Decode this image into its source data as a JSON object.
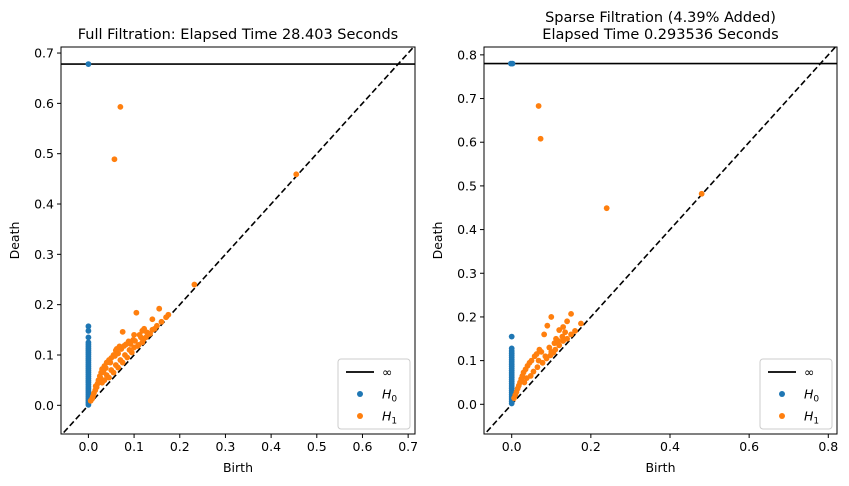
{
  "chart_data": [
    {
      "type": "scatter",
      "title_lines": [
        "Full Filtration: Elapsed Time 28.403 Seconds"
      ],
      "xlabel": "Birth",
      "ylabel": "Death",
      "xlim": [
        -0.06,
        0.715
      ],
      "ylim": [
        -0.057,
        0.712
      ],
      "xticks": [
        0.0,
        0.1,
        0.2,
        0.3,
        0.4,
        0.5,
        0.6,
        0.7
      ],
      "xtick_labels": [
        "0.0",
        "0.1",
        "0.2",
        "0.3",
        "0.4",
        "0.5",
        "0.6",
        "0.7"
      ],
      "yticks": [
        0.0,
        0.1,
        0.2,
        0.3,
        0.4,
        0.5,
        0.6,
        0.7
      ],
      "ytick_labels": [
        "0.0",
        "0.1",
        "0.2",
        "0.3",
        "0.4",
        "0.5",
        "0.6",
        "0.7"
      ],
      "infinity_line": 0.678,
      "diagonal": true,
      "legend": {
        "position": "lower-right",
        "entries": [
          {
            "label": "∞",
            "marker": "line",
            "color": "#000000"
          },
          {
            "label": "H",
            "sub": "0",
            "marker": "dot",
            "color": "#1f77b4"
          },
          {
            "label": "H",
            "sub": "1",
            "marker": "dot",
            "color": "#ff7f0e"
          }
        ]
      },
      "series": [
        {
          "name": "H0",
          "color": "#1f77b4",
          "points": [
            [
              0.0,
              0.678
            ],
            [
              0.0,
              0.157
            ],
            [
              0.0,
              0.148
            ],
            [
              0.0,
              0.135
            ],
            [
              0.0,
              0.125
            ],
            [
              0.0,
              0.121
            ],
            [
              0.0,
              0.117
            ],
            [
              0.0,
              0.113
            ],
            [
              0.0,
              0.109
            ],
            [
              0.0,
              0.105
            ],
            [
              0.0,
              0.101
            ],
            [
              0.0,
              0.097
            ],
            [
              0.0,
              0.093
            ],
            [
              0.0,
              0.089
            ],
            [
              0.0,
              0.085
            ],
            [
              0.0,
              0.081
            ],
            [
              0.0,
              0.077
            ],
            [
              0.0,
              0.073
            ],
            [
              0.0,
              0.069
            ],
            [
              0.0,
              0.065
            ],
            [
              0.0,
              0.061
            ],
            [
              0.0,
              0.057
            ],
            [
              0.0,
              0.053
            ],
            [
              0.0,
              0.049
            ],
            [
              0.0,
              0.045
            ],
            [
              0.0,
              0.041
            ],
            [
              0.0,
              0.037
            ],
            [
              0.0,
              0.033
            ],
            [
              0.0,
              0.029
            ],
            [
              0.0,
              0.025
            ],
            [
              0.0,
              0.021
            ],
            [
              0.0,
              0.017
            ],
            [
              0.0,
              0.013
            ],
            [
              0.0,
              0.009
            ],
            [
              0.0,
              0.005
            ],
            [
              0.0,
              0.001
            ]
          ]
        },
        {
          "name": "H1",
          "color": "#ff7f0e",
          "points": [
            [
              0.07,
              0.593
            ],
            [
              0.057,
              0.489
            ],
            [
              0.455,
              0.459
            ],
            [
              0.232,
              0.24
            ],
            [
              0.155,
              0.192
            ],
            [
              0.105,
              0.184
            ],
            [
              0.175,
              0.18
            ],
            [
              0.14,
              0.171
            ],
            [
              0.122,
              0.152
            ],
            [
              0.075,
              0.146
            ],
            [
              0.128,
              0.145
            ],
            [
              0.115,
              0.135
            ],
            [
              0.098,
              0.13
            ],
            [
              0.088,
              0.127
            ],
            [
              0.082,
              0.121
            ],
            [
              0.068,
              0.117
            ],
            [
              0.072,
              0.112
            ],
            [
              0.06,
              0.109
            ],
            [
              0.065,
              0.103
            ],
            [
              0.055,
              0.1
            ],
            [
              0.05,
              0.094
            ],
            [
              0.045,
              0.09
            ],
            [
              0.04,
              0.085
            ],
            [
              0.035,
              0.078
            ],
            [
              0.03,
              0.072
            ],
            [
              0.028,
              0.065
            ],
            [
              0.025,
              0.058
            ],
            [
              0.022,
              0.05
            ],
            [
              0.02,
              0.043
            ],
            [
              0.018,
              0.036
            ],
            [
              0.015,
              0.03
            ],
            [
              0.012,
              0.024
            ],
            [
              0.01,
              0.018
            ],
            [
              0.008,
              0.013
            ],
            [
              0.005,
              0.009
            ],
            [
              0.09,
              0.11
            ],
            [
              0.1,
              0.115
            ],
            [
              0.11,
              0.12
            ],
            [
              0.12,
              0.13
            ],
            [
              0.13,
              0.14
            ],
            [
              0.14,
              0.15
            ],
            [
              0.15,
              0.158
            ],
            [
              0.16,
              0.166
            ],
            [
              0.17,
              0.175
            ],
            [
              0.08,
              0.1
            ],
            [
              0.07,
              0.09
            ],
            [
              0.06,
              0.08
            ],
            [
              0.05,
              0.07
            ],
            [
              0.04,
              0.06
            ],
            [
              0.035,
              0.05
            ],
            [
              0.03,
              0.045
            ],
            [
              0.095,
              0.105
            ],
            [
              0.085,
              0.095
            ],
            [
              0.075,
              0.085
            ],
            [
              0.065,
              0.075
            ],
            [
              0.055,
              0.065
            ],
            [
              0.045,
              0.055
            ],
            [
              0.108,
              0.118
            ],
            [
              0.118,
              0.125
            ],
            [
              0.126,
              0.135
            ],
            [
              0.135,
              0.142
            ],
            [
              0.145,
              0.152
            ],
            [
              0.062,
              0.112
            ],
            [
              0.078,
              0.118
            ],
            [
              0.092,
              0.122
            ],
            [
              0.102,
              0.128
            ],
            [
              0.058,
              0.098
            ],
            [
              0.048,
              0.085
            ],
            [
              0.038,
              0.074
            ],
            [
              0.033,
              0.066
            ],
            [
              0.026,
              0.055
            ],
            [
              0.024,
              0.047
            ],
            [
              0.016,
              0.038
            ],
            [
              0.112,
              0.14
            ],
            [
              0.118,
              0.148
            ],
            [
              0.1,
              0.14
            ]
          ]
        }
      ]
    },
    {
      "type": "scatter",
      "title_lines": [
        "Sparse Filtration (4.39% Added)",
        "Elapsed Time 0.293536 Seconds"
      ],
      "xlabel": "Birth",
      "ylabel": "Death",
      "xlim": [
        -0.07,
        0.822
      ],
      "ylim": [
        -0.068,
        0.818
      ],
      "xticks": [
        0.0,
        0.2,
        0.4,
        0.6,
        0.8
      ],
      "xtick_labels": [
        "0.0",
        "0.2",
        "0.4",
        "0.6",
        "0.8"
      ],
      "yticks": [
        0.0,
        0.1,
        0.2,
        0.3,
        0.4,
        0.5,
        0.6,
        0.7,
        0.8
      ],
      "ytick_labels": [
        "0.0",
        "0.1",
        "0.2",
        "0.3",
        "0.4",
        "0.5",
        "0.6",
        "0.7",
        "0.8"
      ],
      "infinity_line": 0.78,
      "diagonal": true,
      "legend": {
        "position": "lower-right",
        "entries": [
          {
            "label": "∞",
            "marker": "line",
            "color": "#000000"
          },
          {
            "label": "H",
            "sub": "0",
            "marker": "dot",
            "color": "#1f77b4"
          },
          {
            "label": "H",
            "sub": "1",
            "marker": "dot",
            "color": "#ff7f0e"
          }
        ]
      },
      "series": [
        {
          "name": "H0",
          "color": "#1f77b4",
          "points": [
            [
              -0.002,
              0.78
            ],
            [
              0.002,
              0.78
            ],
            [
              0.0,
              0.155
            ],
            [
              0.0,
              0.128
            ],
            [
              0.0,
              0.122
            ],
            [
              0.0,
              0.117
            ],
            [
              0.0,
              0.112
            ],
            [
              0.0,
              0.107
            ],
            [
              0.0,
              0.102
            ],
            [
              0.0,
              0.097
            ],
            [
              0.0,
              0.092
            ],
            [
              0.0,
              0.087
            ],
            [
              0.0,
              0.082
            ],
            [
              0.0,
              0.077
            ],
            [
              0.0,
              0.072
            ],
            [
              0.0,
              0.067
            ],
            [
              0.0,
              0.062
            ],
            [
              0.0,
              0.057
            ],
            [
              0.0,
              0.052
            ],
            [
              0.0,
              0.047
            ],
            [
              0.0,
              0.042
            ],
            [
              0.0,
              0.037
            ],
            [
              0.0,
              0.032
            ],
            [
              0.0,
              0.027
            ],
            [
              0.0,
              0.022
            ],
            [
              0.0,
              0.017
            ],
            [
              0.0,
              0.012
            ],
            [
              0.0,
              0.007
            ],
            [
              0.0,
              0.002
            ]
          ]
        },
        {
          "name": "H1",
          "color": "#ff7f0e",
          "points": [
            [
              0.068,
              0.683
            ],
            [
              0.073,
              0.608
            ],
            [
              0.24,
              0.449
            ],
            [
              0.48,
              0.482
            ],
            [
              0.15,
              0.207
            ],
            [
              0.1,
              0.2
            ],
            [
              0.14,
              0.19
            ],
            [
              0.09,
              0.18
            ],
            [
              0.13,
              0.177
            ],
            [
              0.12,
              0.17
            ],
            [
              0.135,
              0.165
            ],
            [
              0.112,
              0.15
            ],
            [
              0.108,
              0.14
            ],
            [
              0.118,
              0.145
            ],
            [
              0.128,
              0.155
            ],
            [
              0.082,
              0.16
            ],
            [
              0.095,
              0.13
            ],
            [
              0.07,
              0.125
            ],
            [
              0.075,
              0.12
            ],
            [
              0.063,
              0.115
            ],
            [
              0.058,
              0.11
            ],
            [
              0.05,
              0.1
            ],
            [
              0.045,
              0.095
            ],
            [
              0.04,
              0.088
            ],
            [
              0.035,
              0.08
            ],
            [
              0.03,
              0.073
            ],
            [
              0.027,
              0.065
            ],
            [
              0.024,
              0.058
            ],
            [
              0.021,
              0.05
            ],
            [
              0.018,
              0.043
            ],
            [
              0.015,
              0.036
            ],
            [
              0.012,
              0.028
            ],
            [
              0.009,
              0.021
            ],
            [
              0.006,
              0.014
            ],
            [
              0.085,
              0.11
            ],
            [
              0.1,
              0.12
            ],
            [
              0.11,
              0.125
            ],
            [
              0.12,
              0.135
            ],
            [
              0.13,
              0.145
            ],
            [
              0.14,
              0.15
            ],
            [
              0.15,
              0.16
            ],
            [
              0.16,
              0.168
            ],
            [
              0.175,
              0.185
            ],
            [
              0.065,
              0.085
            ],
            [
              0.055,
              0.075
            ],
            [
              0.048,
              0.065
            ],
            [
              0.038,
              0.06
            ],
            [
              0.032,
              0.05
            ],
            [
              0.078,
              0.095
            ],
            [
              0.068,
              0.1
            ],
            [
              0.088,
              0.105
            ],
            [
              0.098,
              0.112
            ],
            [
              0.105,
              0.118
            ]
          ]
        }
      ]
    }
  ]
}
